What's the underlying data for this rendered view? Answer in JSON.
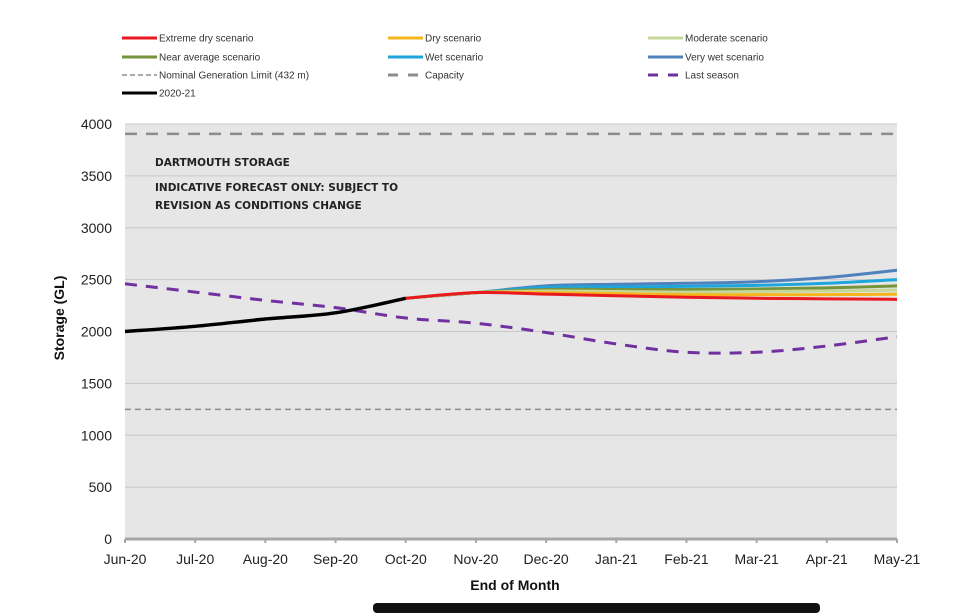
{
  "chart_data": {
    "type": "line",
    "title": "",
    "xlabel": "End of Month",
    "ylabel": "Storage (GL)",
    "ylim": [
      0,
      4000
    ],
    "yticks": [
      0,
      500,
      1000,
      1500,
      2000,
      2500,
      3000,
      3500,
      4000
    ],
    "grid": true,
    "legend_position": "top",
    "categories": [
      "Jun-20",
      "Jul-20",
      "Aug-20",
      "Sep-20",
      "Oct-20",
      "Nov-20",
      "Dec-20",
      "Jan-21",
      "Feb-21",
      "Mar-21",
      "Apr-21",
      "May-21"
    ],
    "annotations": [
      "DARTMOUTH STORAGE",
      "INDICATIVE FORECAST ONLY: SUBJECT TO",
      "REVISION AS CONDITIONS CHANGE"
    ],
    "series": [
      {
        "name": "Extreme dry scenario",
        "color": "#e8191f",
        "style": "solid",
        "values": [
          null,
          null,
          null,
          null,
          2320,
          2375,
          2360,
          2345,
          2330,
          2320,
          2315,
          2310
        ]
      },
      {
        "name": "Dry scenario",
        "color": "#f5b51c",
        "style": "solid",
        "values": [
          null,
          null,
          null,
          null,
          2320,
          2375,
          2375,
          2365,
          2355,
          2355,
          2355,
          2360
        ]
      },
      {
        "name": "Moderate scenario",
        "color": "#c5d89a",
        "style": "solid",
        "values": [
          null,
          null,
          null,
          null,
          2320,
          2375,
          2390,
          2385,
          2380,
          2385,
          2390,
          2400
        ]
      },
      {
        "name": "Near average scenario",
        "color": "#77933c",
        "style": "solid",
        "values": [
          null,
          null,
          null,
          null,
          2320,
          2375,
          2405,
          2405,
          2405,
          2410,
          2420,
          2440
        ]
      },
      {
        "name": "Wet scenario",
        "color": "#1ea6dc",
        "style": "solid",
        "values": [
          null,
          null,
          null,
          null,
          2320,
          2375,
          2425,
          2430,
          2435,
          2445,
          2465,
          2500
        ]
      },
      {
        "name": "Very wet scenario",
        "color": "#4f81bd",
        "style": "solid",
        "values": [
          null,
          null,
          null,
          null,
          2320,
          2375,
          2440,
          2455,
          2465,
          2480,
          2520,
          2590
        ]
      },
      {
        "name": "Nominal Generation Limit (432 m)",
        "color": "#8c8c8c",
        "style": "short-dash",
        "values": [
          1250,
          1250,
          1250,
          1250,
          1250,
          1250,
          1250,
          1250,
          1250,
          1250,
          1250,
          1250
        ]
      },
      {
        "name": "Capacity",
        "color": "#8c8c8c",
        "style": "long-dash",
        "values": [
          3905,
          3905,
          3905,
          3905,
          3905,
          3905,
          3905,
          3905,
          3905,
          3905,
          3905,
          3905
        ]
      },
      {
        "name": "Last season",
        "color": "#7030a0",
        "style": "long-dash",
        "values": [
          2460,
          2380,
          2300,
          2230,
          2130,
          2080,
          1990,
          1880,
          1800,
          1800,
          1860,
          1950
        ]
      },
      {
        "name": "2020-21",
        "color": "#000000",
        "style": "solid",
        "values": [
          2000,
          2050,
          2120,
          2180,
          2320,
          null,
          null,
          null,
          null,
          null,
          null,
          null
        ]
      }
    ],
    "legend": [
      "Extreme dry scenario",
      "Dry scenario",
      "Moderate scenario",
      "Near average scenario",
      "Wet scenario",
      "Very wet scenario",
      "Nominal Generation Limit (432 m)",
      "Capacity",
      "Last season",
      "2020-21"
    ]
  }
}
